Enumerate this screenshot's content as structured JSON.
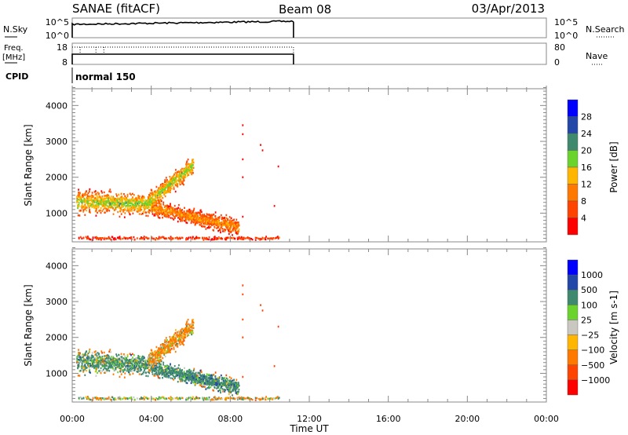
{
  "header": {
    "station": "SANAE (fitACF)",
    "beam": "Beam 08",
    "date": "03/Apr/2013"
  },
  "strips": {
    "nsky_label": "N.Sky",
    "nsky_top": "10^5",
    "nsky_bottom": "10^0",
    "nsearch_label": "N.Search",
    "nsearch_top": "10^5",
    "nsearch_bottom": "10^0",
    "freq_label_1": "Freq.",
    "freq_label_2": "[MHz]",
    "freq_top": "18",
    "freq_bottom": "8",
    "nave_label": "Nave",
    "nave_top": "80",
    "nave_bottom": "0",
    "cpid_label": "CPID",
    "cpid_value": "normal 150",
    "data_end_hour": 11.2
  },
  "colors": {
    "power": [
      "#0000ff",
      "#2347a8",
      "#3f8a6e",
      "#6ad42c",
      "#ffb600",
      "#ff7800",
      "#ff4300",
      "#ff0000"
    ],
    "velocity": [
      "#0000ff",
      "#2347a8",
      "#3f8a6e",
      "#6ad42c",
      "#c8c8c0",
      "#ffb600",
      "#ff7800",
      "#ff4300",
      "#ff0000"
    ]
  },
  "chart_data": [
    {
      "type": "heatmap",
      "name": "power",
      "xlabel": "Time UT",
      "ylabel": "Slant Range [km]",
      "xlim": [
        0,
        24
      ],
      "ylim": [
        200,
        4500
      ],
      "xticks": [
        "00:00",
        "04:00",
        "08:00",
        "12:00",
        "16:00",
        "20:00",
        "00:00"
      ],
      "yticks": [
        "1000",
        "2000",
        "3000",
        "4000"
      ],
      "colorbar": {
        "label": "Power [dB]",
        "ticks": [
          "28",
          "24",
          "20",
          "16",
          "12",
          "8",
          "4"
        ],
        "range": [
          0,
          32
        ]
      },
      "echo_bands": [
        {
          "t0": 0.2,
          "t1": 4.0,
          "r0": 1300,
          "r1": 1250,
          "spread": 420,
          "core": 18,
          "vel": 200
        },
        {
          "t0": 4.0,
          "t1": 8.4,
          "r0": 1150,
          "r1": 600,
          "spread": 300,
          "core": 12,
          "vel": 300
        },
        {
          "t0": 3.8,
          "t1": 6.1,
          "r0": 1300,
          "r1": 2350,
          "spread": 350,
          "core": 18,
          "vel": -150
        },
        {
          "t0": 0.3,
          "t1": 10.4,
          "r0": 300,
          "r1": 300,
          "spread": 60,
          "core": 6,
          "vel": 10
        }
      ],
      "isolated_echoes": [
        [
          8.6,
          3450
        ],
        [
          8.6,
          3200
        ],
        [
          8.6,
          2500
        ],
        [
          8.6,
          2000
        ],
        [
          9.5,
          2900
        ],
        [
          9.6,
          2750
        ],
        [
          10.4,
          2300
        ],
        [
          10.2,
          1200
        ],
        [
          8.6,
          900
        ]
      ]
    },
    {
      "type": "heatmap",
      "name": "velocity",
      "xlabel": "Time UT",
      "ylabel": "Slant Range [km]",
      "xlim": [
        0,
        24
      ],
      "ylim": [
        200,
        4500
      ],
      "xticks": [
        "00:00",
        "04:00",
        "08:00",
        "12:00",
        "16:00",
        "20:00",
        "00:00"
      ],
      "yticks": [
        "1000",
        "2000",
        "3000",
        "4000"
      ],
      "colorbar": {
        "label": "Velocity [m s-1]",
        "ticks": [
          "1000",
          "500",
          "100",
          "25",
          "−25",
          "−100",
          "−500",
          "−1000"
        ]
      }
    }
  ]
}
